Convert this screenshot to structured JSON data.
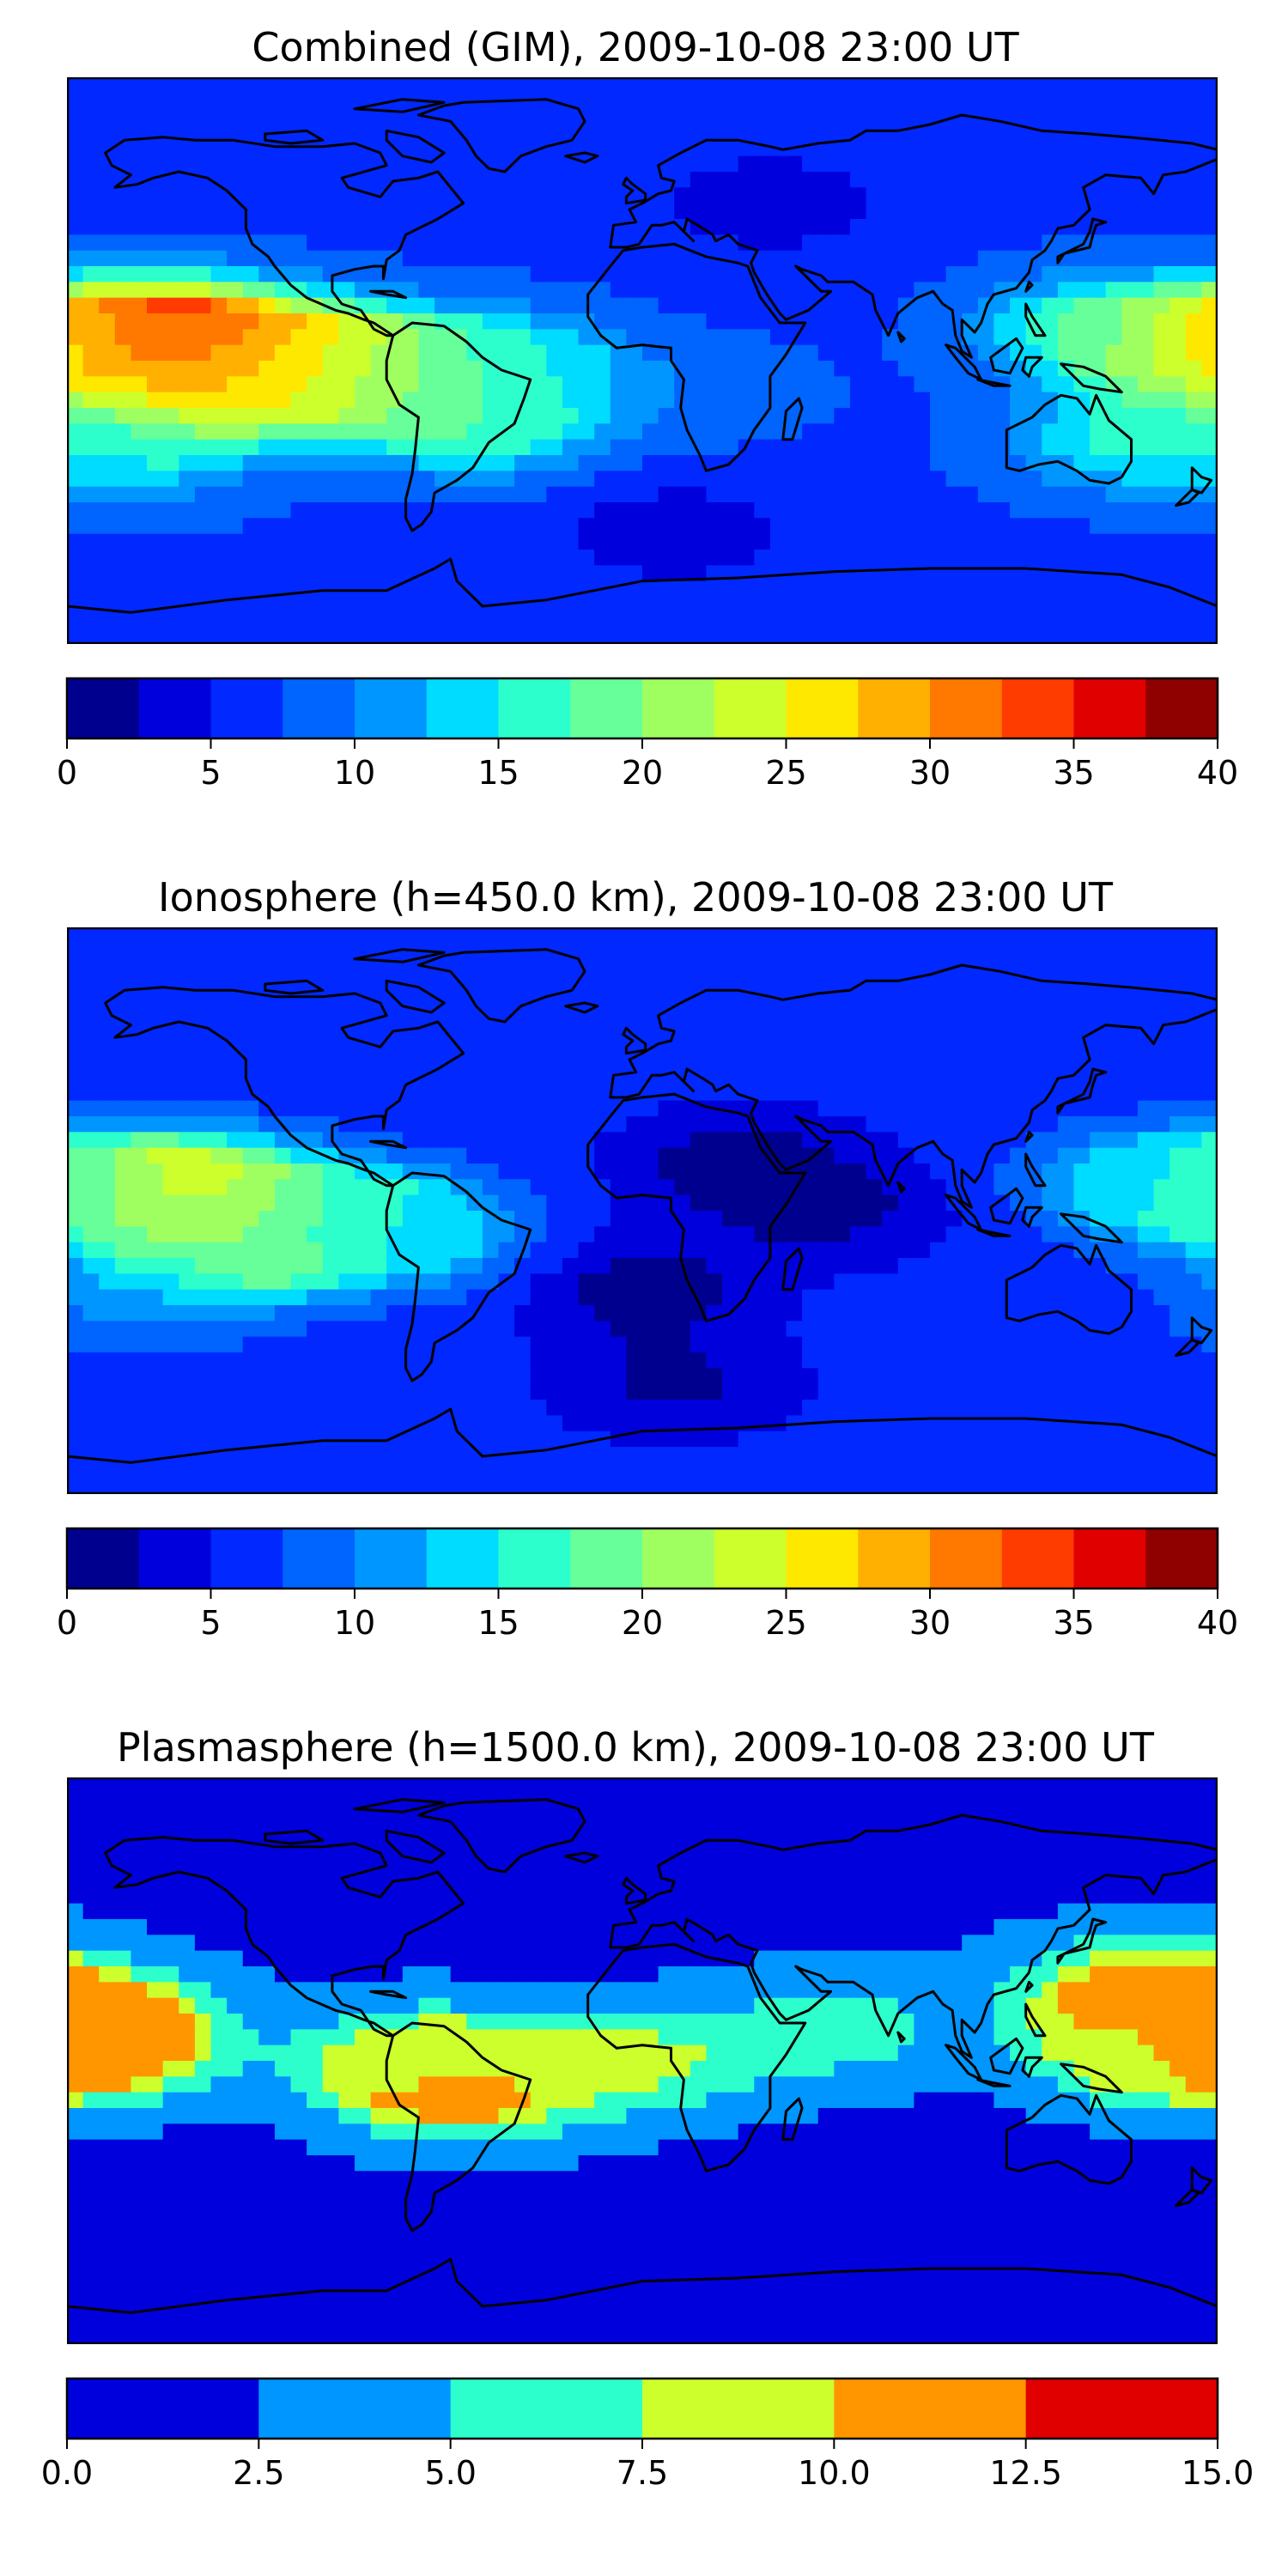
{
  "chart_data": [
    {
      "type": "heatmap",
      "title": "Combined (GIM), 2009-10-08 23:00 UT",
      "colorbar": {
        "ticks": [
          "0",
          "5",
          "10",
          "15",
          "20",
          "25",
          "30",
          "35",
          "40"
        ],
        "min": 0,
        "max": 40,
        "levels": [
          0,
          2.5,
          5,
          7.5,
          10,
          12.5,
          15,
          17.5,
          20,
          22.5,
          25,
          27.5,
          30,
          32.5,
          35,
          37.5,
          40
        ],
        "colors": [
          "#00008f",
          "#0000dc",
          "#0028ff",
          "#0064ff",
          "#0096ff",
          "#00dcff",
          "#2cffcc",
          "#66ff99",
          "#a0ff60",
          "#ccff2c",
          "#ffe800",
          "#ffb000",
          "#ff7800",
          "#ff3c00",
          "#e00000",
          "#8f0000"
        ]
      },
      "background_value": 7,
      "features": [
        {
          "lon": -148,
          "lat": 8,
          "value": 37
        },
        {
          "lon": -133,
          "lat": -8,
          "value": 27
        },
        {
          "lon": -100,
          "lat": 2,
          "value": 25
        },
        {
          "lon": -65,
          "lat": -8,
          "value": 22
        },
        {
          "lon": -50,
          "lat": -20,
          "value": 16
        },
        {
          "lon": 178,
          "lat": 5,
          "value": 26
        },
        {
          "lon": 140,
          "lat": 10,
          "value": 16
        },
        {
          "lon": 150,
          "lat": -25,
          "value": 15
        },
        {
          "lon": 20,
          "lat": -10,
          "value": 9
        },
        {
          "lon": 40,
          "lat": 50,
          "value": 3
        },
        {
          "lon": 10,
          "lat": -55,
          "value": 3
        },
        {
          "lon": -160,
          "lat": -30,
          "value": 14
        },
        {
          "lon": -40,
          "lat": 0,
          "value": 13
        }
      ]
    },
    {
      "type": "heatmap",
      "title": "Ionosphere  (h=450.0 km), 2009-10-08 23:00 UT",
      "colorbar": {
        "ticks": [
          "0",
          "5",
          "10",
          "15",
          "20",
          "25",
          "30",
          "35",
          "40"
        ],
        "min": 0,
        "max": 40,
        "levels": [
          0,
          2.5,
          5,
          7.5,
          10,
          12.5,
          15,
          17.5,
          20,
          22.5,
          25,
          27.5,
          30,
          32.5,
          35,
          37.5,
          40
        ],
        "colors": [
          "#00008f",
          "#0000dc",
          "#0028ff",
          "#0064ff",
          "#0096ff",
          "#00dcff",
          "#2cffcc",
          "#66ff99",
          "#a0ff60",
          "#ccff2c",
          "#ffe800",
          "#ffb000",
          "#ff7800",
          "#ff3c00",
          "#e00000",
          "#8f0000"
        ]
      },
      "background_value": 6,
      "features": [
        {
          "lon": -145,
          "lat": 8,
          "value": 27
        },
        {
          "lon": -125,
          "lat": -12,
          "value": 21
        },
        {
          "lon": -95,
          "lat": 0,
          "value": 16
        },
        {
          "lon": -70,
          "lat": -8,
          "value": 13
        },
        {
          "lon": 178,
          "lat": 5,
          "value": 17
        },
        {
          "lon": 155,
          "lat": 10,
          "value": 12
        },
        {
          "lon": 30,
          "lat": 15,
          "value": 1
        },
        {
          "lon": 0,
          "lat": -25,
          "value": 1
        },
        {
          "lon": 60,
          "lat": 0,
          "value": 2
        },
        {
          "lon": 10,
          "lat": -55,
          "value": 2
        },
        {
          "lon": -160,
          "lat": -30,
          "value": 10
        }
      ]
    },
    {
      "type": "heatmap",
      "title": "Plasmasphere (h=1500.0 km), 2009-10-08 23:00 UT",
      "colorbar": {
        "ticks": [
          "0.0",
          "2.5",
          "5.0",
          "7.5",
          "10.0",
          "12.5",
          "15.0"
        ],
        "min": 0,
        "max": 15,
        "levels": [
          0,
          2.5,
          5,
          7.5,
          10,
          12.5,
          15
        ],
        "colors": [
          "#0000dc",
          "#0096ff",
          "#2cffcc",
          "#ccff2c",
          "#ff9600",
          "#e00000"
        ]
      },
      "background_value": 2,
      "features": [
        {
          "lon": -170,
          "lat": 10,
          "value": 11
        },
        {
          "lon": -55,
          "lat": -8,
          "value": 11
        },
        {
          "lon": 155,
          "lat": 22,
          "value": 11
        },
        {
          "lon": 180,
          "lat": 5,
          "value": 11
        },
        {
          "lon": -70,
          "lat": 0,
          "value": 9
        },
        {
          "lon": 0,
          "lat": 0,
          "value": 8
        },
        {
          "lon": 160,
          "lat": 5,
          "value": 8.5
        },
        {
          "lon": 60,
          "lat": 10,
          "value": 6.5
        }
      ]
    }
  ]
}
